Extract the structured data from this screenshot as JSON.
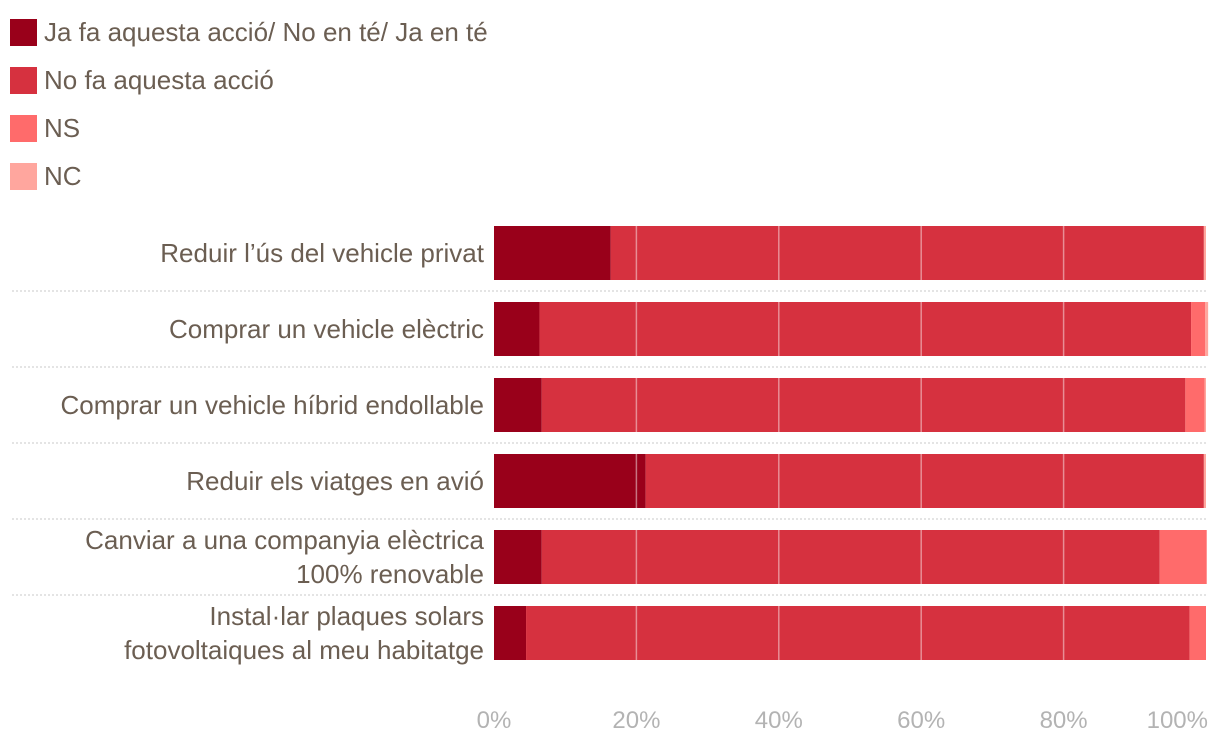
{
  "chart_data": {
    "type": "bar",
    "orientation": "horizontal",
    "stacked": true,
    "title": "",
    "xlabel": "",
    "ylabel": "",
    "xlim": [
      0,
      100
    ],
    "x_ticks": [
      "0%",
      "20%",
      "40%",
      "60%",
      "80%",
      "100%"
    ],
    "x_tick_values": [
      0,
      20,
      40,
      60,
      80,
      100
    ],
    "legend_position": "top-left",
    "categories": [
      [
        "Reduir l’ús del vehicle privat"
      ],
      [
        "Comprar un vehicle elèctric"
      ],
      [
        "Comprar un vehicle híbrid endollable"
      ],
      [
        "Reduir els viatges en avió"
      ],
      [
        "Canviar a una companyia elèctrica",
        "100% renovable"
      ],
      [
        "Instal·lar plaques solars",
        "fotovoltaiques al meu habitatge"
      ]
    ],
    "series": [
      {
        "name": "Ja fa aquesta acció/ No en té/ Ja en té",
        "color": "#99001a",
        "values": [
          16.4,
          6.4,
          6.7,
          21.3,
          6.7,
          4.5
        ]
      },
      {
        "name": "No fa aquesta acció",
        "color": "#d6313f",
        "values": [
          83.3,
          91.5,
          90.4,
          78.4,
          86.8,
          93.2
        ]
      },
      {
        "name": "NS",
        "color": "#ff6b6b",
        "values": [
          0.0,
          2.0,
          2.7,
          0.0,
          6.6,
          2.3
        ]
      },
      {
        "name": "NC",
        "color": "#ffa69e",
        "values": [
          0.3,
          0.4,
          0.2,
          0.3,
          0.0,
          0.0
        ]
      }
    ]
  }
}
